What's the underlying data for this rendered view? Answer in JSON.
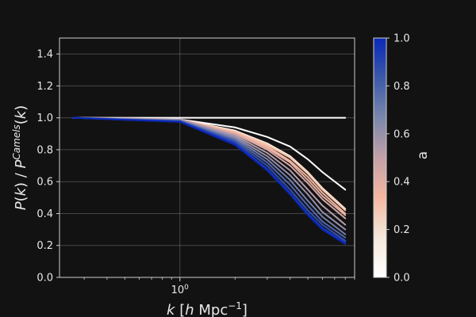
{
  "chart_data": {
    "type": "line",
    "title": "",
    "xlabel": "k [h Mpc⁻¹]",
    "ylabel": "P(k) / P^Camels(k)",
    "xscale": "log",
    "xlim": [
      0.22,
      9.0
    ],
    "ylim": [
      0.0,
      1.5
    ],
    "xticks": [
      {
        "value": 1.0,
        "label": "10^0"
      }
    ],
    "yticks": [
      0.0,
      0.2,
      0.4,
      0.6,
      0.8,
      1.0,
      1.2,
      1.4
    ],
    "ytick_labels": [
      "0.0",
      "0.2",
      "0.4",
      "0.6",
      "0.8",
      "1.0",
      "1.2",
      "1.4"
    ],
    "grid": true,
    "background": "#121212",
    "colorbar": {
      "label": "a",
      "range": [
        0.0,
        1.0
      ],
      "ticks": [
        "0.0",
        "0.2",
        "0.4",
        "0.6",
        "0.8",
        "1.0"
      ],
      "colormap": [
        "#ffffff",
        "#f5e8dc",
        "#f4b8a0",
        "#c3a0a8",
        "#7a87ad",
        "#3c5aa8",
        "#0a28b8"
      ]
    },
    "series": [
      {
        "a": 1.0,
        "color": "#ffffff",
        "x": [
          0.26,
          1.0,
          8.0
        ],
        "y": [
          1.0,
          1.0,
          1.0
        ]
      },
      {
        "a": 0.0,
        "color": "#ffffff",
        "x": [
          0.26,
          1.0,
          2.0,
          3.0,
          4.0,
          5.0,
          6.0,
          8.0
        ],
        "y": [
          1.0,
          0.99,
          0.94,
          0.88,
          0.82,
          0.74,
          0.66,
          0.55
        ]
      },
      {
        "a": 0.05,
        "color": "#fbe3d6",
        "x": [
          0.26,
          1.0,
          2.0,
          3.0,
          4.0,
          5.0,
          6.0,
          8.0
        ],
        "y": [
          1.0,
          0.99,
          0.92,
          0.84,
          0.76,
          0.66,
          0.56,
          0.43
        ]
      },
      {
        "a": 0.1,
        "color": "#f7c8b2",
        "x": [
          0.26,
          1.0,
          2.0,
          3.0,
          4.0,
          5.0,
          6.0,
          8.0
        ],
        "y": [
          1.0,
          0.99,
          0.91,
          0.83,
          0.75,
          0.65,
          0.55,
          0.42
        ]
      },
      {
        "a": 0.18,
        "color": "#f4b8a0",
        "x": [
          0.26,
          1.0,
          2.0,
          3.0,
          4.0,
          5.0,
          6.0,
          8.0
        ],
        "y": [
          1.0,
          0.99,
          0.91,
          0.82,
          0.73,
          0.63,
          0.53,
          0.4
        ]
      },
      {
        "a": 0.25,
        "color": "#e8b0a4",
        "x": [
          0.26,
          1.0,
          2.0,
          3.0,
          4.0,
          5.0,
          6.0,
          8.0
        ],
        "y": [
          1.0,
          0.99,
          0.9,
          0.81,
          0.72,
          0.61,
          0.51,
          0.39
        ]
      },
      {
        "a": 0.35,
        "color": "#d5a8a8",
        "x": [
          0.26,
          1.0,
          2.0,
          3.0,
          4.0,
          5.0,
          6.0,
          8.0
        ],
        "y": [
          1.0,
          0.99,
          0.9,
          0.8,
          0.7,
          0.59,
          0.49,
          0.37
        ]
      },
      {
        "a": 0.45,
        "color": "#b49cab",
        "x": [
          0.26,
          1.0,
          2.0,
          3.0,
          4.0,
          5.0,
          6.0,
          8.0
        ],
        "y": [
          1.0,
          0.99,
          0.89,
          0.78,
          0.67,
          0.55,
          0.45,
          0.33
        ]
      },
      {
        "a": 0.55,
        "color": "#9590ad",
        "x": [
          0.26,
          1.0,
          2.0,
          3.0,
          4.0,
          5.0,
          6.0,
          8.0
        ],
        "y": [
          1.0,
          0.985,
          0.88,
          0.76,
          0.64,
          0.52,
          0.41,
          0.3
        ]
      },
      {
        "a": 0.65,
        "color": "#7580ae",
        "x": [
          0.26,
          1.0,
          2.0,
          3.0,
          4.0,
          5.0,
          6.0,
          8.0
        ],
        "y": [
          1.0,
          0.985,
          0.87,
          0.74,
          0.61,
          0.48,
          0.38,
          0.27
        ]
      },
      {
        "a": 0.75,
        "color": "#5567ac",
        "x": [
          0.26,
          1.0,
          2.0,
          3.0,
          4.0,
          5.0,
          6.0,
          8.0
        ],
        "y": [
          1.0,
          0.98,
          0.86,
          0.72,
          0.58,
          0.45,
          0.35,
          0.25
        ]
      },
      {
        "a": 0.85,
        "color": "#3550b0",
        "x": [
          0.26,
          1.0,
          2.0,
          3.0,
          4.0,
          5.0,
          6.0,
          8.0
        ],
        "y": [
          1.0,
          0.98,
          0.85,
          0.7,
          0.55,
          0.42,
          0.33,
          0.23
        ]
      },
      {
        "a": 0.93,
        "color": "#1a38b5",
        "x": [
          0.26,
          1.0,
          2.0,
          3.0,
          4.0,
          5.0,
          6.0,
          8.0
        ],
        "y": [
          1.0,
          0.975,
          0.84,
          0.68,
          0.53,
          0.4,
          0.31,
          0.22
        ]
      },
      {
        "a": 1.0,
        "color": "#0a28b8",
        "x": [
          0.26,
          1.0,
          2.0,
          3.0,
          4.0,
          5.0,
          6.0,
          8.0
        ],
        "y": [
          1.0,
          0.975,
          0.83,
          0.67,
          0.52,
          0.39,
          0.3,
          0.21
        ]
      }
    ]
  }
}
